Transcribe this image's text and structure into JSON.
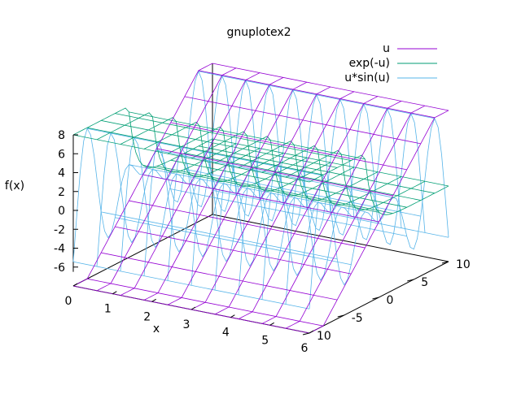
{
  "chart_data": {
    "type": "surface3d",
    "title": "gnuplotex2",
    "xlabel": "x",
    "ylabel": "",
    "zlabel": "f(x)",
    "xlim": [
      0,
      6
    ],
    "ylim": [
      -10,
      10
    ],
    "zlim": [
      -8,
      8
    ],
    "x_ticks": [
      "0",
      "1",
      "2",
      "3",
      "4",
      "5",
      "6"
    ],
    "y_ticks": [
      "10",
      "5",
      "0",
      "-5",
      "10"
    ],
    "z_ticks": [
      "8",
      "6",
      "4",
      "2",
      "0",
      "-2",
      "-4",
      "-6"
    ],
    "grid": false,
    "legend_position": "top-right",
    "series": [
      {
        "name": "u",
        "expression": "u",
        "color": "#9400d3"
      },
      {
        "name": "exp(-u)",
        "expression": "exp(-u)",
        "color": "#009e73"
      },
      {
        "name": "u*sin(u)",
        "expression": "u*sin(u)",
        "color": "#56b4e9"
      }
    ]
  }
}
